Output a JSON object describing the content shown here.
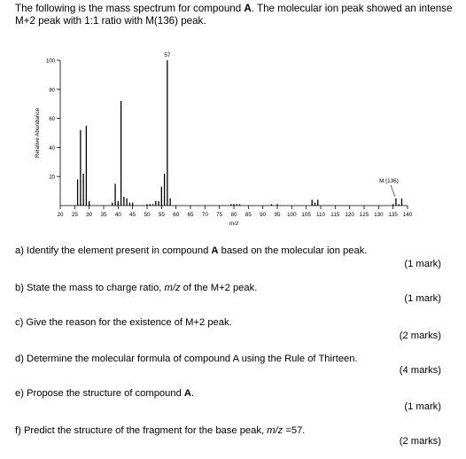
{
  "intro": {
    "part1": "The following is the mass spectrum for compound ",
    "compound": "A",
    "part2": ". The molecular ion peak showed an intense M+2 peak with 1:1 ratio with M(136) peak."
  },
  "chart_data": {
    "type": "bar",
    "ylabel": "Relative Abundance",
    "xlabel": "m/z",
    "xlim": [
      20,
      140
    ],
    "ylim": [
      0,
      100
    ],
    "xticks": [
      20,
      25,
      30,
      35,
      40,
      45,
      50,
      55,
      60,
      65,
      70,
      75,
      80,
      85,
      90,
      95,
      100,
      105,
      110,
      115,
      120,
      125,
      130,
      135,
      140
    ],
    "yticks": [
      20,
      40,
      60,
      80,
      100
    ],
    "peak_labels": [
      {
        "mz": 57,
        "text": "57"
      },
      {
        "mz": 136,
        "text": "M (136)"
      }
    ],
    "peaks": [
      {
        "mz": 26,
        "value": 18
      },
      {
        "mz": 27,
        "value": 52
      },
      {
        "mz": 28,
        "value": 22
      },
      {
        "mz": 29,
        "value": 55
      },
      {
        "mz": 30,
        "value": 3
      },
      {
        "mz": 38,
        "value": 2
      },
      {
        "mz": 39,
        "value": 15
      },
      {
        "mz": 40,
        "value": 3
      },
      {
        "mz": 41,
        "value": 72
      },
      {
        "mz": 42,
        "value": 6
      },
      {
        "mz": 43,
        "value": 5
      },
      {
        "mz": 44,
        "value": 2
      },
      {
        "mz": 45,
        "value": 2
      },
      {
        "mz": 50,
        "value": 1
      },
      {
        "mz": 51,
        "value": 1
      },
      {
        "mz": 52,
        "value": 1
      },
      {
        "mz": 53,
        "value": 3
      },
      {
        "mz": 54,
        "value": 3
      },
      {
        "mz": 55,
        "value": 13
      },
      {
        "mz": 56,
        "value": 22
      },
      {
        "mz": 57,
        "value": 100
      },
      {
        "mz": 58,
        "value": 5
      },
      {
        "mz": 79,
        "value": 1
      },
      {
        "mz": 80,
        "value": 1
      },
      {
        "mz": 81,
        "value": 1
      },
      {
        "mz": 82,
        "value": 1
      },
      {
        "mz": 93,
        "value": 1
      },
      {
        "mz": 95,
        "value": 1
      },
      {
        "mz": 107,
        "value": 4
      },
      {
        "mz": 108,
        "value": 2
      },
      {
        "mz": 109,
        "value": 4
      },
      {
        "mz": 135,
        "value": 1
      },
      {
        "mz": 136,
        "value": 5
      },
      {
        "mz": 137,
        "value": 1
      },
      {
        "mz": 138,
        "value": 5
      }
    ]
  },
  "questions": [
    {
      "id": "a",
      "text_before": "a) Identify the element present in compound ",
      "bold": "A",
      "text_after": " based on the molecular ion peak.",
      "marks": "(1 mark)"
    },
    {
      "id": "b",
      "text_before": "b) State the mass to charge ratio, ",
      "italic": "m/z",
      "text_after": " of the M+2 peak.",
      "marks": "(1 mark)"
    },
    {
      "id": "c",
      "text": "c) Give the reason for the existence of M+2 peak.",
      "marks": "(2 marks)"
    },
    {
      "id": "d",
      "text": "d) Determine the molecular formula of compound A using the Rule of Thirteen.",
      "marks": "(4 marks)"
    },
    {
      "id": "e",
      "text_before": "e) Propose the structure of compound ",
      "bold": "A",
      "text_after": ".",
      "marks": "(1 mark)"
    },
    {
      "id": "f",
      "text_before": "f) Predict the structure of the fragment for the base peak, ",
      "italic": "m/z",
      "text_after": " =57.",
      "marks": "(2 marks)"
    }
  ]
}
